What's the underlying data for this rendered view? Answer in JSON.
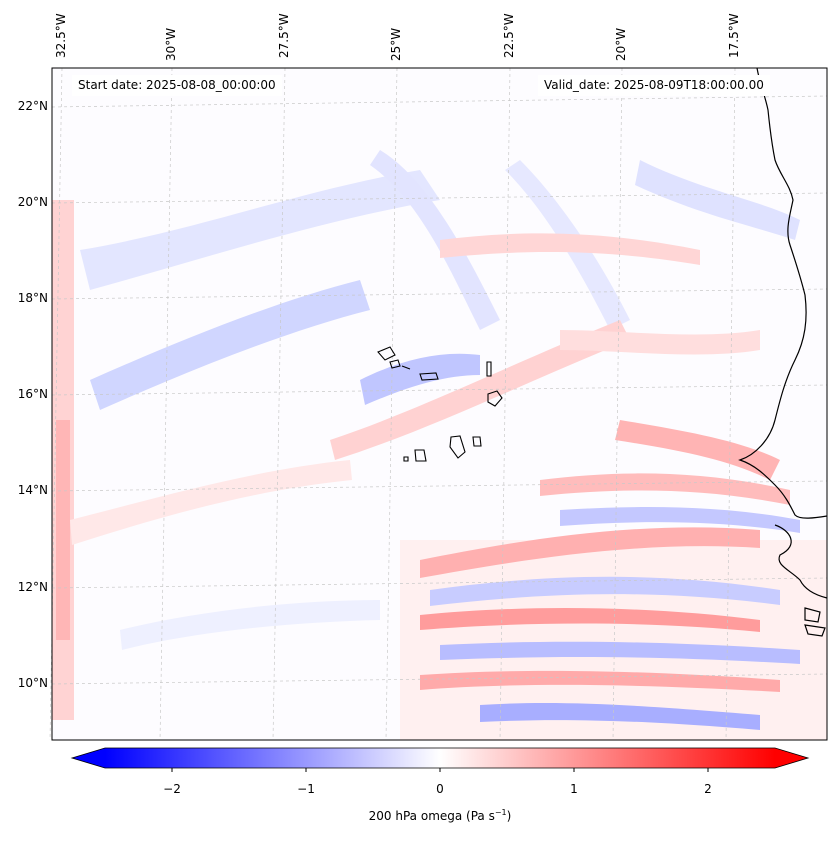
{
  "map": {
    "start_date": "Start date: 2025-08-08_00:00:00",
    "valid_date": "Valid_date: 2025-08-09T18:00:00.00",
    "lon_labels": [
      "32.5°W",
      "30°W",
      "27.5°W",
      "25°W",
      "22.5°W",
      "20°W",
      "17.5°W"
    ],
    "lat_labels": [
      "22°N",
      "20°N",
      "18°N",
      "16°N",
      "14°N",
      "12°N",
      "10°N"
    ],
    "region": "Cape Verde / West Africa coast",
    "colormap": "bwr",
    "colors": {
      "negative": "#0000ff",
      "zero": "#ffffff",
      "positive": "#ff0000",
      "coast": "#000000",
      "grid": "#c8c8c8"
    }
  },
  "colorbar": {
    "ticks": [
      "−2",
      "−1",
      "0",
      "1",
      "2"
    ],
    "label": "200 hPa omega (Pa s",
    "label_sup": "−1",
    "label_end": ")",
    "range": [
      -2.6,
      2.6
    ]
  }
}
